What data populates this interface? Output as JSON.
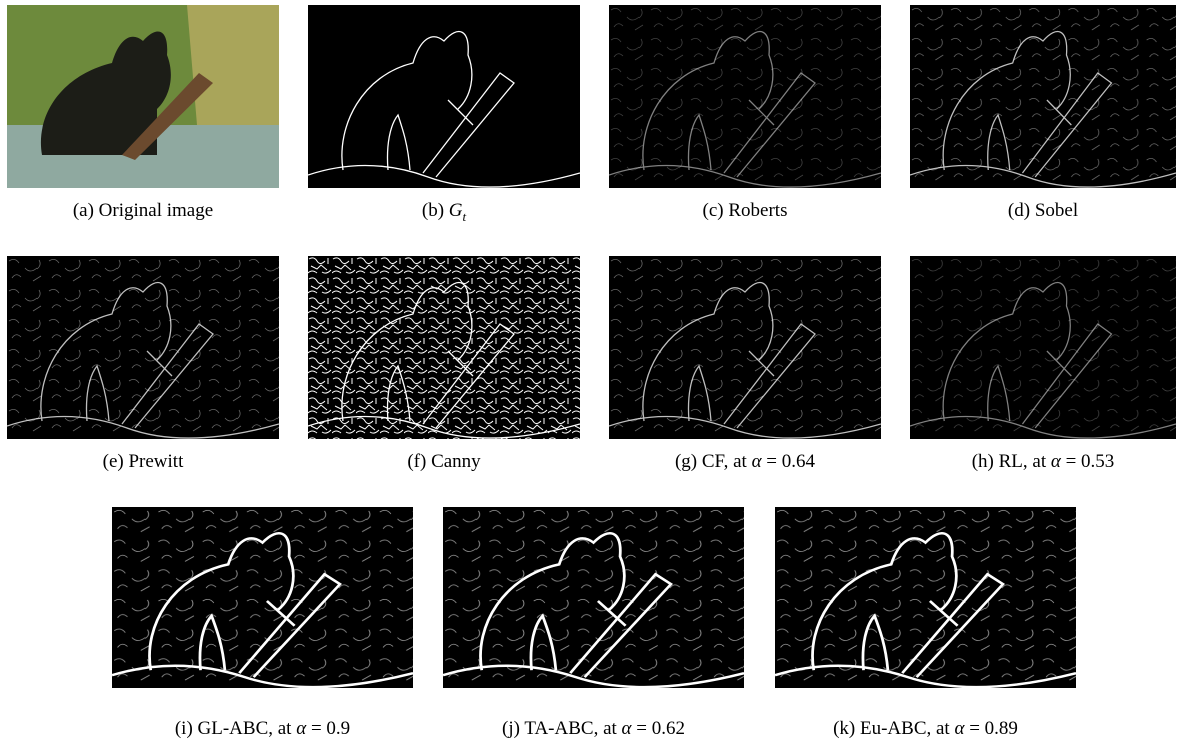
{
  "panels": [
    {
      "label": "(a)",
      "name": "Original image"
    },
    {
      "label": "(b)",
      "name": "G",
      "subscript": "t"
    },
    {
      "label": "(c)",
      "name": "Roberts"
    },
    {
      "label": "(d)",
      "name": "Sobel"
    },
    {
      "label": "(e)",
      "name": "Prewitt"
    },
    {
      "label": "(f)",
      "name": "Canny"
    },
    {
      "label": "(g)",
      "name": "CF, at",
      "symbol": "α",
      "operator": "=",
      "value": "0.64"
    },
    {
      "label": "(h)",
      "name": "RL, at",
      "symbol": "α",
      "operator": "=",
      "value": "0.53"
    },
    {
      "label": "(i)",
      "name": "GL-ABC, at",
      "symbol": "α",
      "operator": "=",
      "value": "0.9"
    },
    {
      "label": "(j)",
      "name": "TA-ABC, at",
      "symbol": "α",
      "operator": "=",
      "value": "0.62"
    },
    {
      "label": "(k)",
      "name": "Eu-ABC, at",
      "symbol": "α",
      "operator": "=",
      "value": "0.89"
    }
  ]
}
